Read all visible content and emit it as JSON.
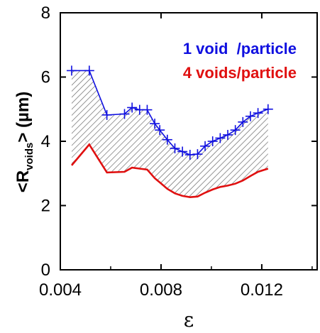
{
  "chart_data": {
    "type": "line",
    "title": "",
    "xlabel": "ε",
    "ylabel": {
      "prefix": "<R",
      "subscript": "voids",
      "suffix": "> (µm)"
    },
    "xlim": [
      0.004,
      0.0142
    ],
    "ylim": [
      0,
      8
    ],
    "x_ticks": [
      0.004,
      0.008,
      0.012
    ],
    "x_tick_labels": [
      "0.004",
      "0.008",
      "0.012"
    ],
    "y_ticks": [
      0,
      2,
      4,
      6,
      8
    ],
    "y_tick_labels": [
      "0",
      "2",
      "4",
      "6",
      "8"
    ],
    "grid": false,
    "legend_position": "top-right",
    "shaded_region_between_series": true,
    "series": [
      {
        "name": "1 void  /particle",
        "color": "#1010e0",
        "marker": "plus",
        "x": [
          0.00445,
          0.00515,
          0.00585,
          0.00655,
          0.00685,
          0.00715,
          0.00745,
          0.00775,
          0.00795,
          0.00825,
          0.00855,
          0.00885,
          0.00915,
          0.00945,
          0.00975,
          0.01005,
          0.01035,
          0.01065,
          0.01095,
          0.01125,
          0.01155,
          0.01185,
          0.01225
        ],
        "y": [
          6.2,
          6.2,
          4.82,
          4.85,
          5.05,
          4.98,
          4.98,
          4.55,
          4.35,
          4.05,
          3.78,
          3.68,
          3.58,
          3.6,
          3.85,
          4.0,
          4.1,
          4.2,
          4.35,
          4.6,
          4.78,
          4.88,
          5.0
        ]
      },
      {
        "name": "4 voids/particle",
        "color": "#e01010",
        "marker": "none",
        "x": [
          0.00445,
          0.00515,
          0.00585,
          0.00655,
          0.00685,
          0.00715,
          0.00745,
          0.00775,
          0.00795,
          0.00825,
          0.00855,
          0.00885,
          0.00915,
          0.00945,
          0.00975,
          0.01005,
          0.01035,
          0.01065,
          0.01095,
          0.01125,
          0.01155,
          0.01185,
          0.01225
        ],
        "y": [
          3.25,
          3.9,
          3.03,
          3.05,
          3.18,
          3.15,
          3.12,
          2.85,
          2.72,
          2.52,
          2.38,
          2.3,
          2.26,
          2.28,
          2.4,
          2.5,
          2.58,
          2.62,
          2.68,
          2.78,
          2.92,
          3.05,
          3.15
        ]
      }
    ]
  },
  "colors": {
    "axis": "#000000",
    "hatch": "#606060",
    "background": "#ffffff"
  }
}
